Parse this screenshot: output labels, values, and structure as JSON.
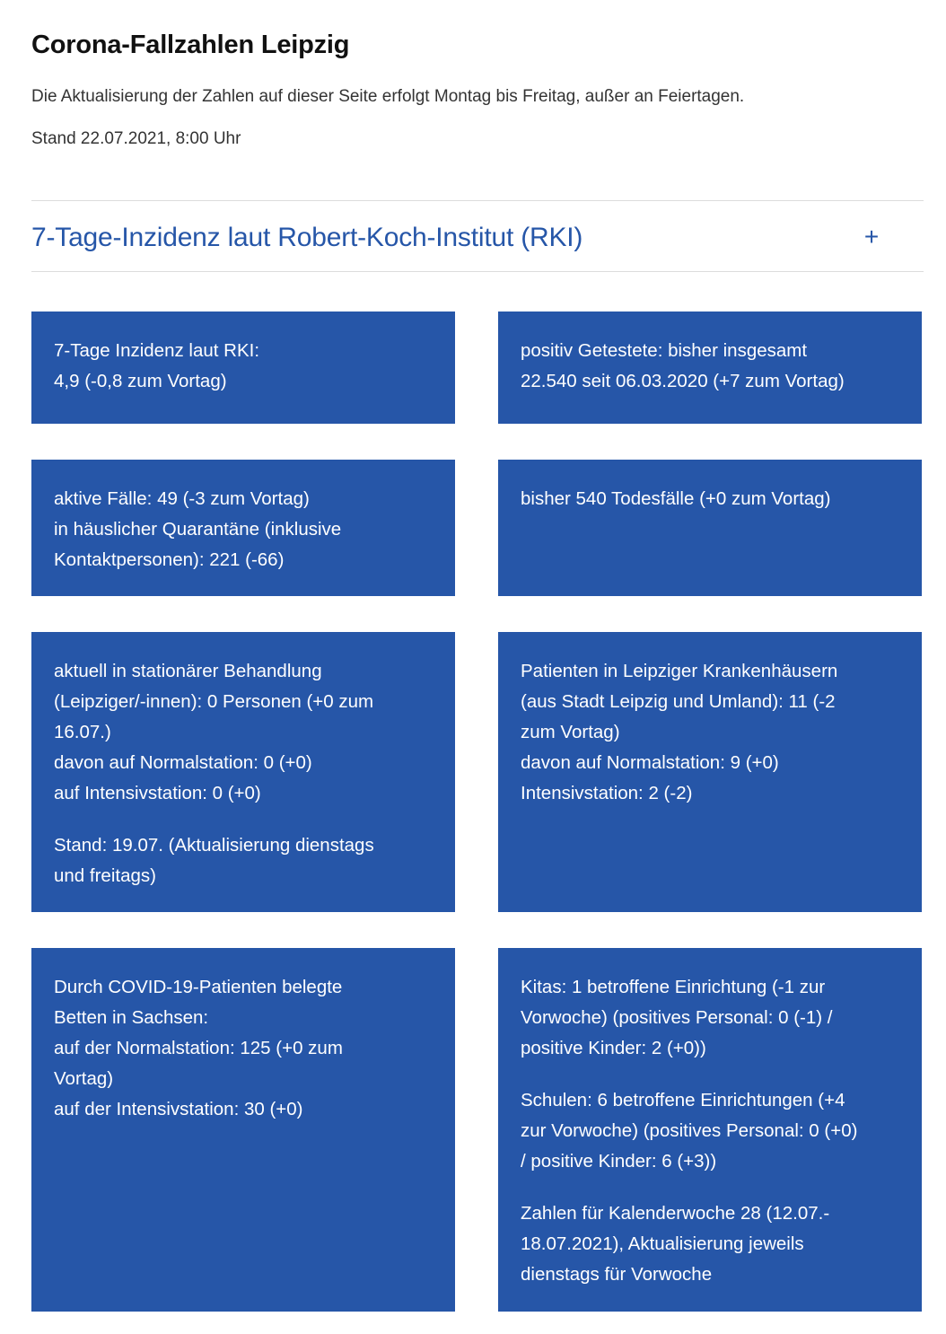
{
  "page": {
    "title": "Corona-Fallzahlen Leipzig",
    "intro": "Die Aktualisierung der Zahlen auf dieser Seite erfolgt Montag bis Freitag, außer an Feiertagen.",
    "stand": "Stand 22.07.2021, 8:00 Uhr"
  },
  "accordion": {
    "title": "7-Tage-Inzidenz laut Robert-Koch-Institut (RKI)",
    "toggle_symbol": "+",
    "toggle_icon": "plus-icon",
    "expanded": false
  },
  "colors": {
    "box_background": "#2656a8",
    "accent": "#2656a8",
    "box_text": "#ffffff"
  },
  "boxes": {
    "incidence": {
      "line1": "7-Tage Inzidenz laut RKI:",
      "line2": "4,9 (-0,8 zum Vortag)"
    },
    "positive": {
      "line1": "positiv Getestete: bisher insgesamt",
      "line2": "22.540 seit 06.03.2020 (+7 zum Vortag)"
    },
    "active": {
      "line1": "aktive Fälle: 49 (-3 zum Vortag)",
      "line2": "in häuslicher Quarantäne (inklusive",
      "line3": "Kontaktpersonen): 221 (-66)"
    },
    "deaths": {
      "line1": "bisher 540 Todesfälle (+0 zum Vortag)"
    },
    "stationary": {
      "line1": "aktuell in stationärer Behandlung",
      "line2": "(Leipziger/-innen): 0 Personen (+0 zum",
      "line3": "16.07.)",
      "line4": "davon auf Normalstation: 0 (+0)",
      "line5": "auf Intensivstation: 0 (+0)",
      "note_line1": "Stand: 19.07. (Aktualisierung dienstags",
      "note_line2": "und freitags)"
    },
    "hospitals": {
      "line1": "Patienten in Leipziger Krankenhäusern",
      "line2": "(aus Stadt Leipzig und Umland): 11 (-2",
      "line3": "zum Vortag)",
      "line4": "davon auf Normalstation: 9 (+0)",
      "line5": "Intensivstation: 2 (-2)"
    },
    "saxony": {
      "line1": "Durch COVID-19-Patienten belegte",
      "line2": "Betten in Sachsen:",
      "line3": "auf der Normalstation: 125 (+0 zum",
      "line4": "Vortag)",
      "line5": "auf der Intensivstation: 30 (+0)"
    },
    "institutions": {
      "kitas_line1": "Kitas: 1 betroffene Einrichtung (-1 zur",
      "kitas_line2": "Vorwoche) (positives Personal: 0 (-1) /",
      "kitas_line3": "positive Kinder: 2 (+0))",
      "schools_line1": "Schulen: 6 betroffene Einrichtungen (+4",
      "schools_line2": "zur Vorwoche) (positives Personal: 0 (+0)",
      "schools_line3": "/ positive Kinder: 6 (+3))",
      "note_line1": "Zahlen für Kalenderwoche 28 (12.07.-",
      "note_line2": "18.07.2021), Aktualisierung jeweils",
      "note_line3": "dienstags für Vorwoche"
    }
  }
}
